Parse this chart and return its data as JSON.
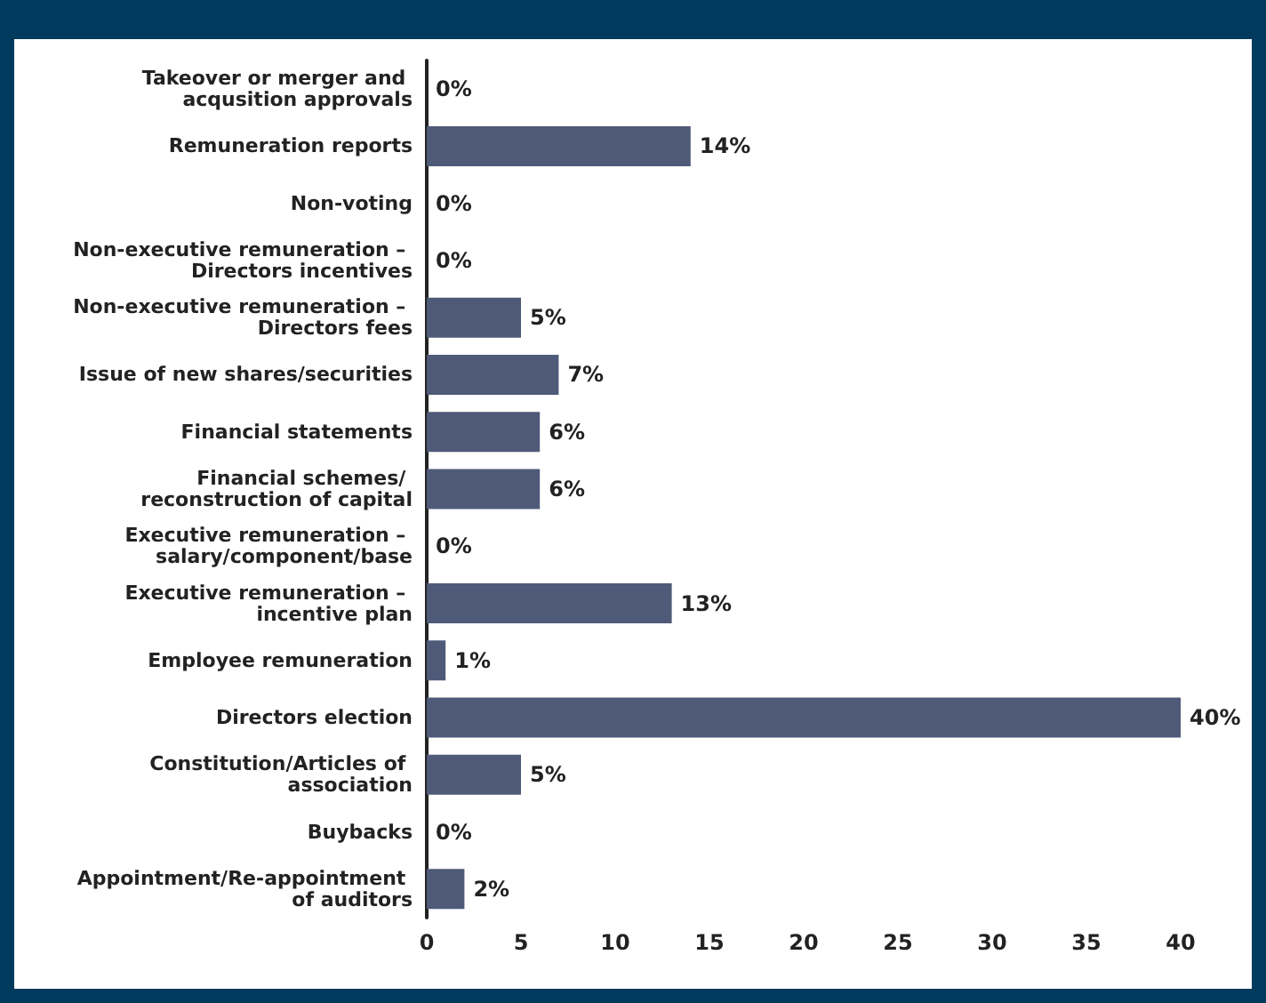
{
  "chart_data": {
    "type": "bar",
    "orientation": "horizontal",
    "categories": [
      "Takeover or merger and acqusition approvals",
      "Remuneration reports",
      "Non-voting",
      "Non-executive remuneration – Directors incentives",
      "Non-executive remuneration – Directors fees",
      "Issue of new shares/securities",
      "Financial statements",
      "Financial schemes/ reconstruction of capital",
      "Executive remuneration – salary/component/base",
      "Executive remuneration – incentive plan",
      "Employee remuneration",
      "Directors election",
      "Constitution/Articles of association",
      "Buybacks",
      "Appointment/Re-appointment of auditors"
    ],
    "values": [
      0,
      14,
      0,
      0,
      5,
      7,
      6,
      6,
      0,
      13,
      1,
      40,
      5,
      0,
      2
    ],
    "value_labels": [
      "0%",
      "14%",
      "0%",
      "0%",
      "5%",
      "7%",
      "6%",
      "6%",
      "0%",
      "13%",
      "1%",
      "40%",
      "5%",
      "0%",
      "2%"
    ],
    "color": "#4f5a78",
    "xlim": [
      0,
      40
    ],
    "xticks": [
      0,
      5,
      10,
      15,
      20,
      25,
      30,
      35,
      40
    ]
  }
}
